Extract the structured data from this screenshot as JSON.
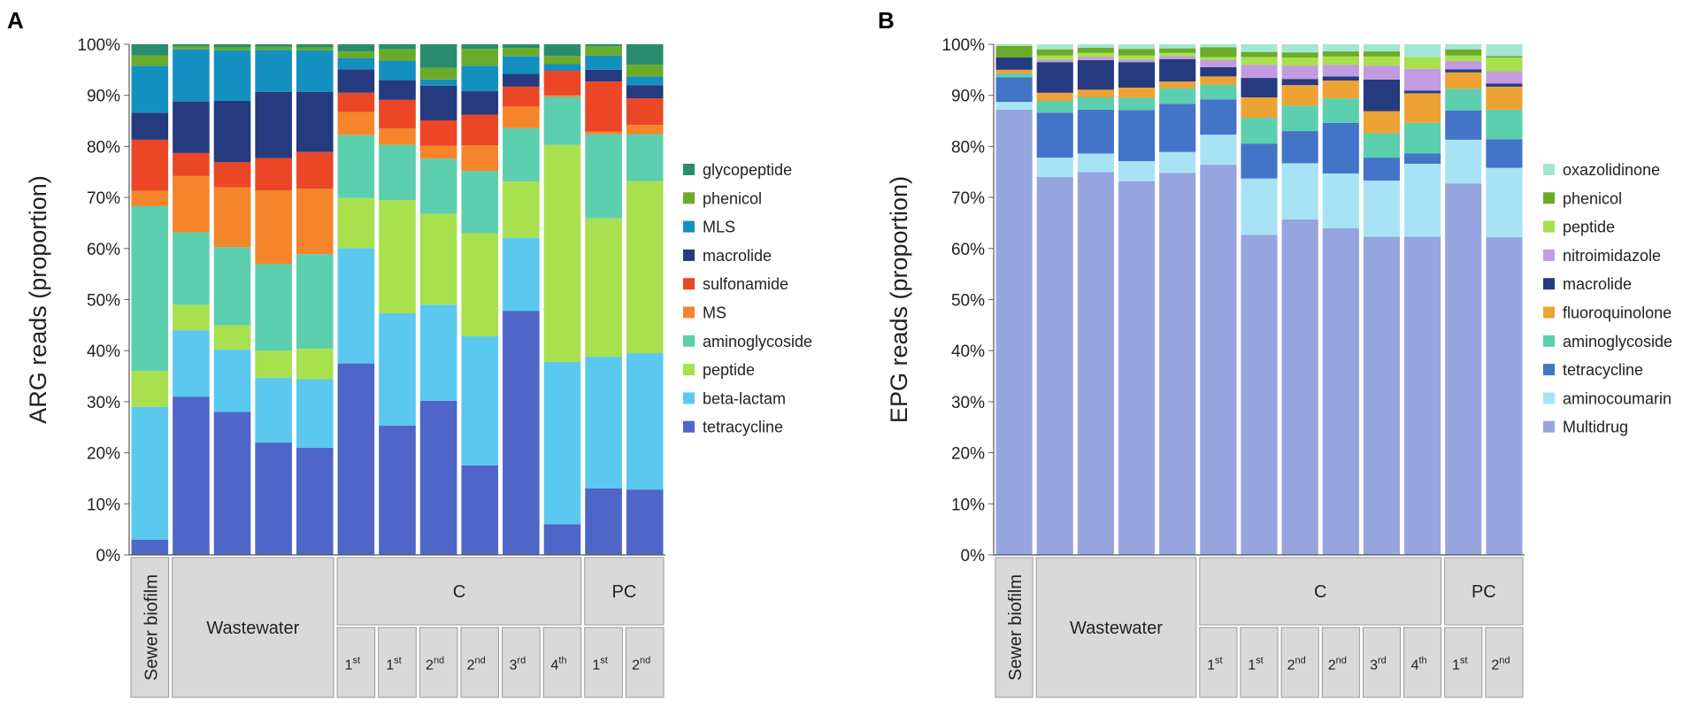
{
  "panels": [
    {
      "panel_label": "A",
      "chart_data": {
        "type": "bar",
        "stacked": true,
        "ylabel": "ARG reads (proportion)",
        "ylim": [
          0,
          100
        ],
        "ytick_values": [
          0,
          10,
          20,
          30,
          40,
          50,
          60,
          70,
          80,
          90,
          100
        ],
        "ytick_labels": [
          "0%",
          "10%",
          "20%",
          "30%",
          "40%",
          "50%",
          "60%",
          "70%",
          "80%",
          "90%",
          "100%"
        ],
        "legend_position": "right",
        "groups": [
          {
            "label": "Sewer biofilm",
            "span": 1,
            "vertical": true,
            "sublabels": []
          },
          {
            "label": "Wastewater",
            "span": 4,
            "vertical": false,
            "sublabels": []
          },
          {
            "label": "C",
            "span": 6,
            "vertical": false,
            "sublabels": [
              {
                "base": "1",
                "sup": "st"
              },
              {
                "base": "1",
                "sup": "st"
              },
              {
                "base": "2",
                "sup": "nd"
              },
              {
                "base": "2",
                "sup": "nd"
              },
              {
                "base": "3",
                "sup": "rd"
              },
              {
                "base": "4",
                "sup": "th"
              }
            ]
          },
          {
            "label": "PC",
            "span": 2,
            "vertical": false,
            "sublabels": [
              {
                "base": "1",
                "sup": "st"
              },
              {
                "base": "2",
                "sup": "nd"
              }
            ]
          }
        ],
        "series": [
          {
            "name": "tetracycline",
            "color": "#4f66c8",
            "values": [
              3,
              31,
              28,
              22,
              21,
              37.5,
              25.3,
              30.2,
              17.5,
              47.8,
              6,
              13,
              12.8
            ]
          },
          {
            "name": "beta-lactam",
            "color": "#5bc8ef",
            "values": [
              26,
              13,
              12.2,
              12.7,
              13.4,
              22.6,
              22,
              18.8,
              25.3,
              14.3,
              31.8,
              25.8,
              26.7
            ]
          },
          {
            "name": "peptide",
            "color": "#a8e04e",
            "values": [
              7,
              5,
              4.8,
              5.3,
              6,
              9.8,
              22.2,
              17.8,
              20.2,
              11,
              42.5,
              27.1,
              33.7
            ]
          },
          {
            "name": "aminoglycoside",
            "color": "#5ccfae",
            "values": [
              32.3,
              14.2,
              15.3,
              17,
              18.5,
              12.3,
              10.8,
              10.8,
              12.2,
              10.5,
              9.4,
              16.5,
              9.2
            ]
          },
          {
            "name": "MS",
            "color": "#f5852a",
            "values": [
              3,
              11,
              11.7,
              14.4,
              12.8,
              4.5,
              3.2,
              2.5,
              5,
              4.2,
              0.3,
              0.5,
              1.8
            ]
          },
          {
            "name": "sulfonamide",
            "color": "#eb4626",
            "values": [
              10,
              4.5,
              4.9,
              6.3,
              7.2,
              3.8,
              5.6,
              5,
              6,
              3.9,
              4.8,
              9.8,
              5.2
            ]
          },
          {
            "name": "macrolide",
            "color": "#263a80",
            "values": [
              5.3,
              10.1,
              12,
              13,
              11.8,
              4.6,
              3.9,
              6.8,
              4.6,
              2.5,
              0,
              2.3,
              2.6
            ]
          },
          {
            "name": "MLS",
            "color": "#1490c0",
            "values": [
              9.2,
              10.2,
              9.9,
              8.2,
              8.1,
              2.2,
              3.8,
              1.2,
              5,
              3.5,
              1.3,
              2.8,
              1.7
            ]
          },
          {
            "name": "phenicol",
            "color": "#6aac2a",
            "values": [
              2,
              0.6,
              0.6,
              0.6,
              0.6,
              1.3,
              2.2,
              2.3,
              3.3,
              1.6,
              1.6,
              1.8,
              2.3
            ]
          },
          {
            "name": "glycopeptide",
            "color": "#2a8c6e",
            "values": [
              2.2,
              0.4,
              0.6,
              0.5,
              0.6,
              1.4,
              1,
              4.6,
              0.9,
              0.7,
              2.3,
              0.4,
              4
            ]
          }
        ]
      }
    },
    {
      "panel_label": "B",
      "chart_data": {
        "type": "bar",
        "stacked": true,
        "ylabel": "EPG reads (proportion)",
        "ylim": [
          0,
          100
        ],
        "ytick_values": [
          0,
          10,
          20,
          30,
          40,
          50,
          60,
          70,
          80,
          90,
          100
        ],
        "ytick_labels": [
          "0%",
          "10%",
          "20%",
          "30%",
          "40%",
          "50%",
          "60%",
          "70%",
          "80%",
          "90%",
          "100%"
        ],
        "legend_position": "right",
        "groups": [
          {
            "label": "Sewer biofilm",
            "span": 1,
            "vertical": true,
            "sublabels": []
          },
          {
            "label": "Wastewater",
            "span": 4,
            "vertical": false,
            "sublabels": []
          },
          {
            "label": "C",
            "span": 6,
            "vertical": false,
            "sublabels": [
              {
                "base": "1",
                "sup": "st"
              },
              {
                "base": "1",
                "sup": "st"
              },
              {
                "base": "2",
                "sup": "nd"
              },
              {
                "base": "2",
                "sup": "nd"
              },
              {
                "base": "3",
                "sup": "rd"
              },
              {
                "base": "4",
                "sup": "th"
              }
            ]
          },
          {
            "label": "PC",
            "span": 2,
            "vertical": false,
            "sublabels": [
              {
                "base": "1",
                "sup": "st"
              },
              {
                "base": "2",
                "sup": "nd"
              }
            ]
          }
        ],
        "series": [
          {
            "name": "Multidrug",
            "color": "#96a5de",
            "values": [
              87.2,
              74,
              75,
              73.2,
              74.8,
              76.4,
              62.7,
              65.7,
              64,
              62.3,
              62.3,
              72.7,
              62.2
            ]
          },
          {
            "name": "aminocoumarin",
            "color": "#a8e3f5",
            "values": [
              1.5,
              3.8,
              3.6,
              3.9,
              4.1,
              5.9,
              11,
              11,
              10.7,
              11,
              14.3,
              8.6,
              13.6
            ]
          },
          {
            "name": "tetracycline",
            "color": "#4474c8",
            "values": [
              4.8,
              8.8,
              8.6,
              10,
              9.4,
              6.9,
              6.8,
              6.3,
              9.9,
              4.5,
              2,
              5.7,
              5.6
            ]
          },
          {
            "name": "aminoglycoside",
            "color": "#5ccfae",
            "values": [
              0.8,
              2.3,
              2.4,
              2.4,
              3.1,
              2.9,
              5.1,
              5,
              4.8,
              4.8,
              6,
              4.3,
              5.8
            ]
          },
          {
            "name": "fluoroquinolone",
            "color": "#eda234",
            "values": [
              0.7,
              1.6,
              1.5,
              2,
              1.3,
              1.6,
              4,
              4,
              3.5,
              4.3,
              5.8,
              3.2,
              4.5
            ]
          },
          {
            "name": "macrolide",
            "color": "#263a80",
            "values": [
              2.4,
              6,
              5.8,
              5,
              4.4,
              1.8,
              3.8,
              1.2,
              0.8,
              6.2,
              0.5,
              0.6,
              0.6
            ]
          },
          {
            "name": "nitroimidazole",
            "color": "#c39be0",
            "values": [
              0,
              0.5,
              0.6,
              0.5,
              0.6,
              1.4,
              2.6,
              2.6,
              2.3,
              2.7,
              4.3,
              1.6,
              2.4
            ]
          },
          {
            "name": "peptide",
            "color": "#a8e04e",
            "values": [
              0,
              0.8,
              0.8,
              0.8,
              0.6,
              0.6,
              1.5,
              1.6,
              1.6,
              1.8,
              2.3,
              1.1,
              2.7
            ]
          },
          {
            "name": "phenicol",
            "color": "#6aac2a",
            "values": [
              2.3,
              1.2,
              1,
              1.3,
              0.9,
              1.9,
              1,
              1,
              1,
              1,
              0,
              1.2,
              0.3
            ]
          },
          {
            "name": "oxazolidinone",
            "color": "#a3e6d3",
            "values": [
              0.3,
              1,
              0.7,
              0.9,
              0.8,
              0.6,
              1.5,
              1.6,
              1.4,
              1.4,
              2.5,
              1,
              2.3
            ]
          }
        ]
      }
    }
  ]
}
